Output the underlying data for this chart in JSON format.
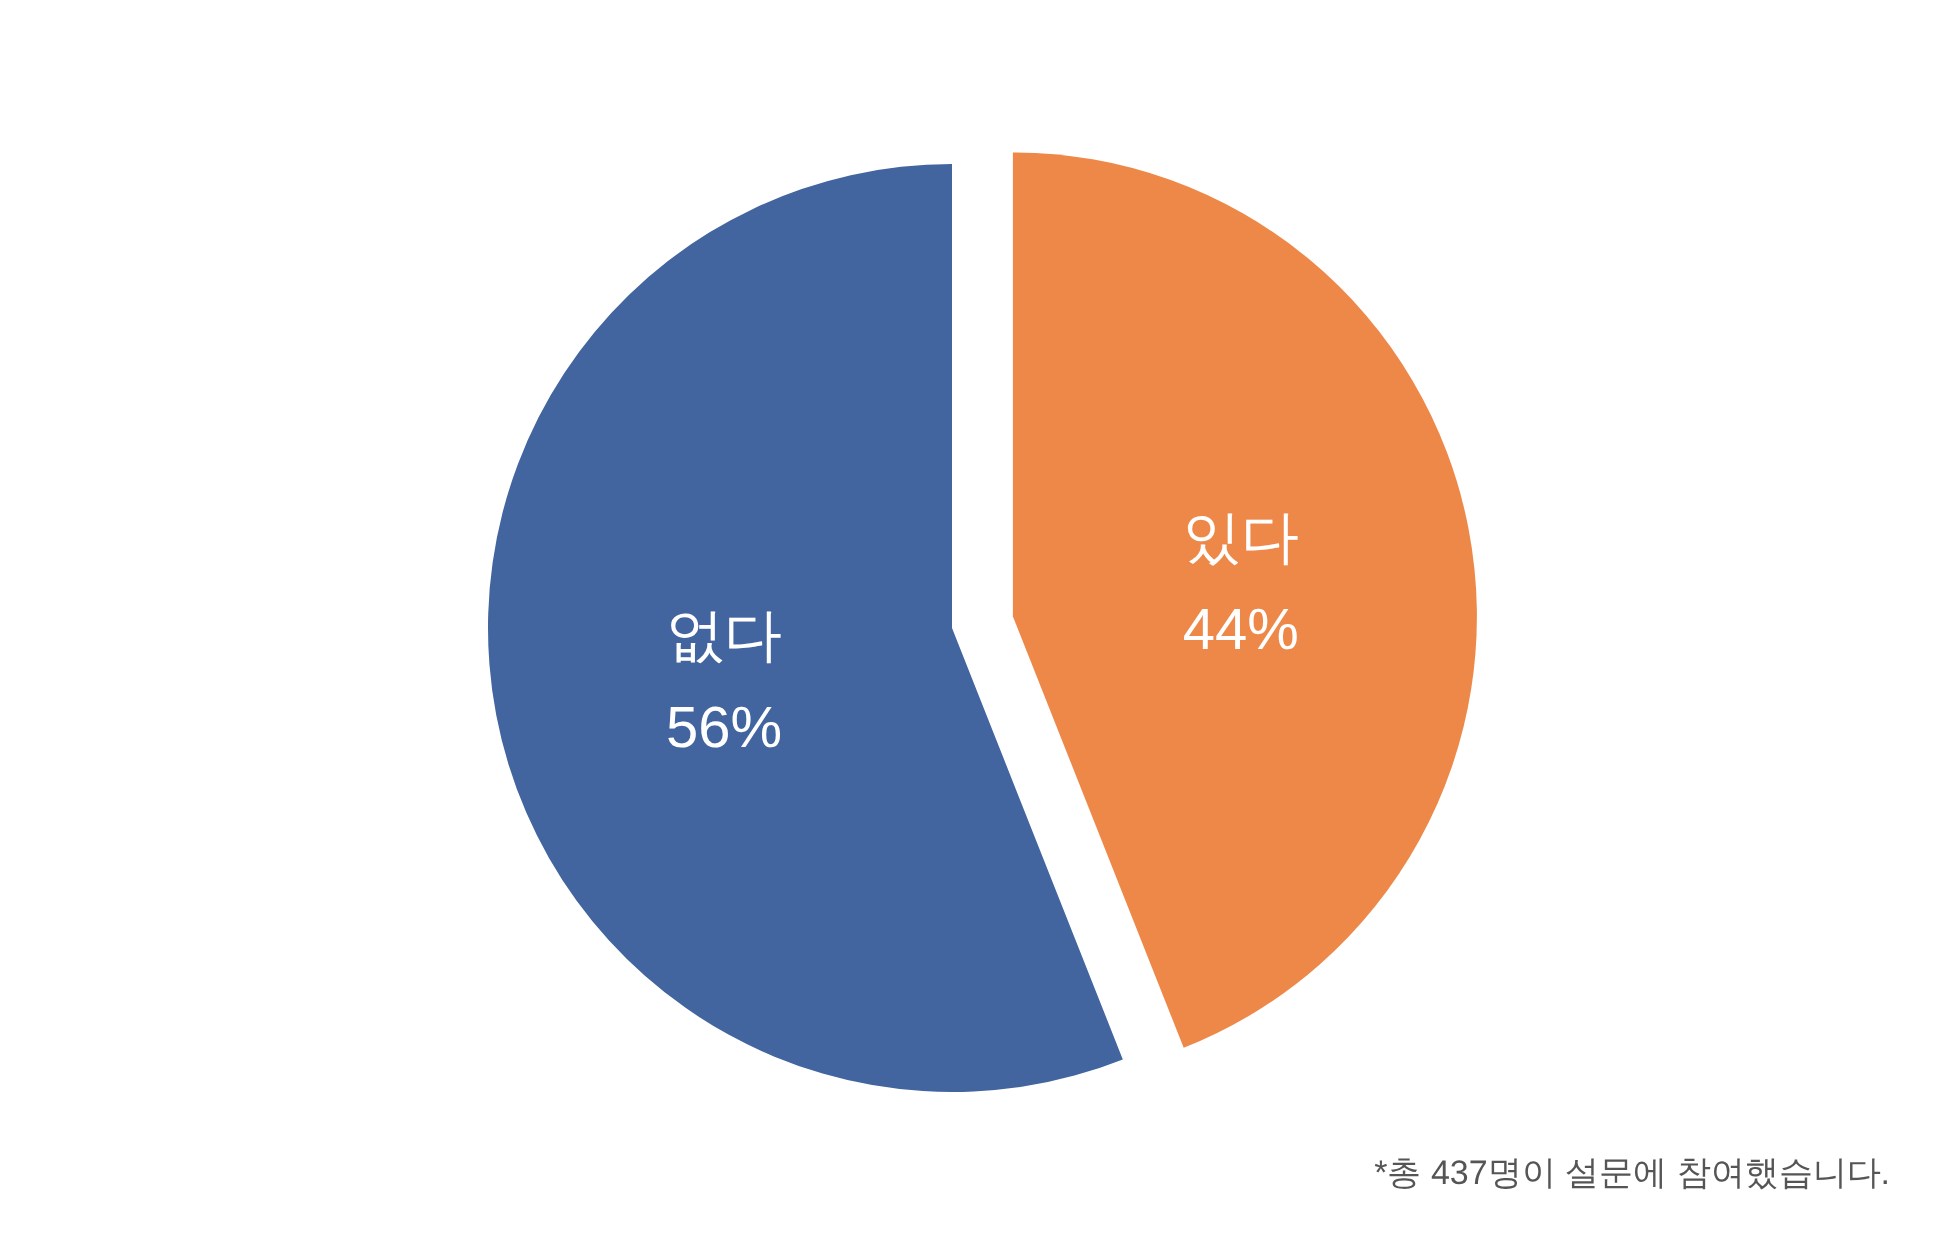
{
  "chart_data": {
    "type": "pie",
    "categories": [
      "있다",
      "없다"
    ],
    "values": [
      44,
      56
    ],
    "value_labels": [
      "44%",
      "56%"
    ],
    "colors": [
      "#ee8849",
      "#42649f"
    ],
    "annotations": [
      "*총 437명이 설문에 참여했습니다."
    ]
  }
}
